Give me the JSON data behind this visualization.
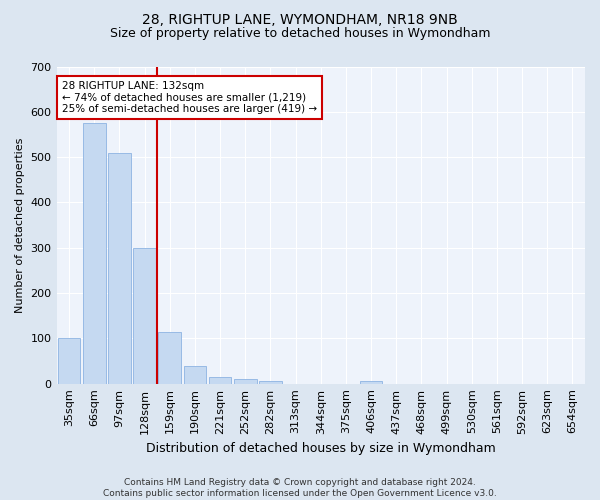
{
  "title_line1": "28, RIGHTUP LANE, WYMONDHAM, NR18 9NB",
  "title_line2": "Size of property relative to detached houses in Wymondham",
  "xlabel": "Distribution of detached houses by size in Wymondham",
  "ylabel": "Number of detached properties",
  "categories": [
    "35sqm",
    "66sqm",
    "97sqm",
    "128sqm",
    "159sqm",
    "190sqm",
    "221sqm",
    "252sqm",
    "282sqm",
    "313sqm",
    "344sqm",
    "375sqm",
    "406sqm",
    "437sqm",
    "468sqm",
    "499sqm",
    "530sqm",
    "561sqm",
    "592sqm",
    "623sqm",
    "654sqm"
  ],
  "values": [
    100,
    575,
    510,
    300,
    115,
    38,
    15,
    10,
    7,
    0,
    0,
    0,
    5,
    0,
    0,
    0,
    0,
    0,
    0,
    0,
    0
  ],
  "bar_color": "#c5d9f1",
  "bar_edge_color": "#8db3e2",
  "vline_color": "#cc0000",
  "annotation_line1": "28 RIGHTUP LANE: 132sqm",
  "annotation_line2": "← 74% of detached houses are smaller (1,219)",
  "annotation_line3": "25% of semi-detached houses are larger (419) →",
  "annotation_box_color": "#ffffff",
  "annotation_box_edge": "#cc0000",
  "ylim": [
    0,
    700
  ],
  "yticks": [
    0,
    100,
    200,
    300,
    400,
    500,
    600,
    700
  ],
  "footer_line1": "Contains HM Land Registry data © Crown copyright and database right 2024.",
  "footer_line2": "Contains public sector information licensed under the Open Government Licence v3.0.",
  "bg_color": "#dce6f1",
  "plot_bg_color": "#eef3fb",
  "grid_color": "#ffffff",
  "title_fontsize": 10,
  "subtitle_fontsize": 9,
  "ylabel_fontsize": 8,
  "xlabel_fontsize": 9,
  "tick_fontsize": 8,
  "annot_fontsize": 7.5,
  "footer_fontsize": 6.5
}
